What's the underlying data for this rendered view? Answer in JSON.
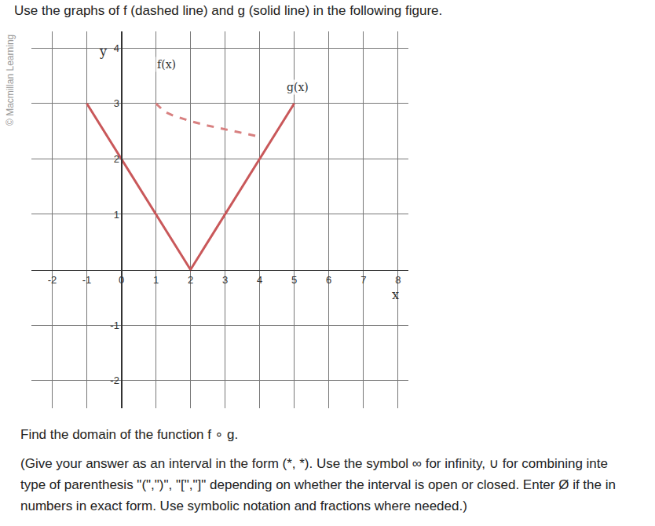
{
  "header": "Use the graphs of f (dashed line) and g (solid line) in the following figure.",
  "watermark": "© Macmillan Learning",
  "chart_data": {
    "type": "line",
    "x_label": "x",
    "y_label": "y",
    "xlim": [
      -2.6,
      8.3
    ],
    "ylim": [
      -2.5,
      4.3
    ],
    "xticks": [
      -2,
      -1,
      0,
      1,
      2,
      3,
      4,
      5,
      6,
      7,
      8
    ],
    "yticks": [
      -2,
      -1,
      1,
      2,
      3,
      4
    ],
    "grid": true,
    "series": [
      {
        "color": "#d88080",
        "line_style": "dash",
        "x": [
          1,
          1.25,
          1.5,
          2,
          2.5,
          3,
          3.5,
          4
        ],
        "values": [
          3,
          2.85,
          2.78,
          2.68,
          2.6,
          2.53,
          2.46,
          2.4
        ]
      },
      {
        "color": "#c9585a",
        "line_style": "solid",
        "x": [
          -1,
          2,
          5
        ],
        "values": [
          3,
          0,
          3
        ]
      }
    ],
    "annotations": [
      {
        "text": "f(x)",
        "x": 1.3,
        "y": 3.7
      },
      {
        "text": "g(x)",
        "x": 5.1,
        "y": 3.3
      }
    ]
  },
  "question": {
    "prompt": "Find the domain of the function f ∘ g.",
    "instructions": [
      "(Give your answer as an interval in the form (*, *). Use the symbol ∞ for infinity, ∪ for combining inte",
      "type of parenthesis \"(\",\")\", \"[\",\"]\" depending on whether the interval is open or closed. Enter Ø if the in",
      "numbers in exact form. Use symbolic notation and fractions where needed.)"
    ]
  }
}
